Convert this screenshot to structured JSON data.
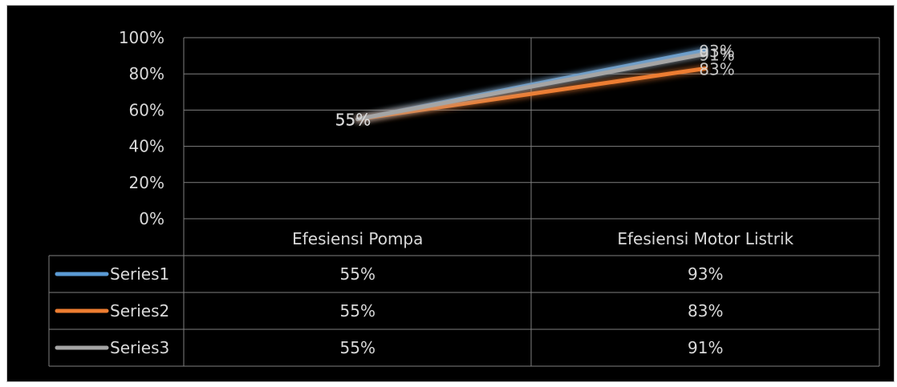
{
  "chart_data": {
    "type": "line",
    "categories": [
      "Efesiensi Pompa",
      "Efesiensi Motor Listrik"
    ],
    "series": [
      {
        "name": "Series1",
        "values": [
          0.55,
          0.93
        ],
        "labels": [
          "55%",
          "93%"
        ],
        "color": "#5b9bd5"
      },
      {
        "name": "Series2",
        "values": [
          0.55,
          0.83
        ],
        "labels": [
          "55%",
          "83%"
        ],
        "color": "#ed7d31"
      },
      {
        "name": "Series3",
        "values": [
          0.55,
          0.91
        ],
        "labels": [
          "55%",
          "91%"
        ],
        "color": "#a5a5a5"
      }
    ],
    "ylim": [
      0,
      1
    ],
    "y_ticks": [
      "0%",
      "20%",
      "40%",
      "60%",
      "80%",
      "100%"
    ],
    "grid": true,
    "data_table": true,
    "legend": "data-table"
  },
  "colors": {
    "background": "#000000",
    "grid": "#7f7f7f",
    "text": "#d9d9d9"
  }
}
